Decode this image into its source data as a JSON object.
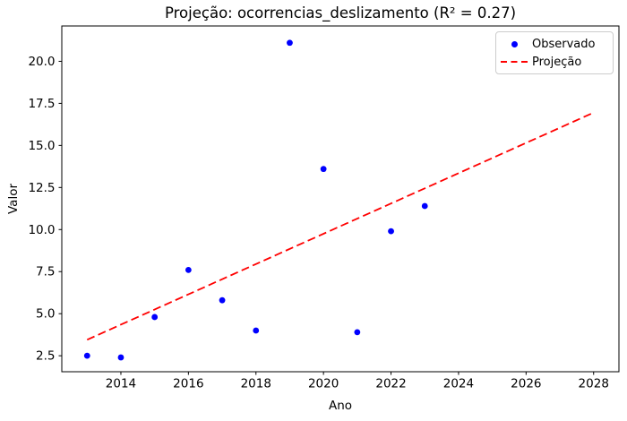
{
  "window": {
    "background_color": "#ffffff"
  },
  "chart_data": {
    "type": "scatter",
    "title": "Projeção: ocorrencias_deslizamento (R² = 0.27)",
    "xlabel": "Ano",
    "ylabel": "Valor",
    "xlim": [
      2012.25,
      2028.75
    ],
    "ylim": [
      1.55,
      22.1
    ],
    "x_ticks": [
      2014,
      2016,
      2018,
      2020,
      2022,
      2024,
      2026,
      2028
    ],
    "y_ticks": [
      2.5,
      5.0,
      7.5,
      10.0,
      12.5,
      15.0,
      17.5,
      20.0
    ],
    "grid": false,
    "legend_position": "upper right",
    "series": [
      {
        "name": "Observado",
        "kind": "scatter",
        "color": "#0000ff",
        "x": [
          2013,
          2014,
          2015,
          2016,
          2017,
          2018,
          2019,
          2020,
          2021,
          2022,
          2023
        ],
        "y": [
          2.5,
          2.4,
          4.8,
          7.6,
          5.8,
          4.0,
          21.1,
          13.6,
          3.9,
          9.9,
          11.4
        ]
      },
      {
        "name": "Projeção",
        "kind": "dashed-line",
        "color": "#ff0000",
        "x": [
          2013,
          2028
        ],
        "y": [
          3.45,
          16.95
        ]
      }
    ]
  }
}
